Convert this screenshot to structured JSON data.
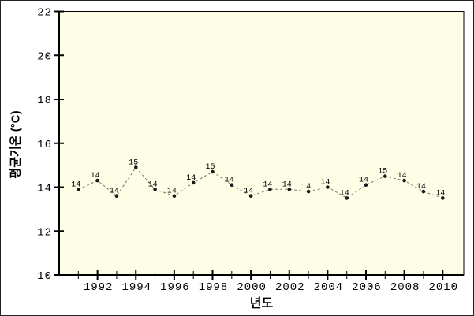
{
  "chart_data": {
    "type": "line",
    "title": "",
    "xlabel": "년도",
    "ylabel": "평균기온 (°C)",
    "x": [
      1991,
      1992,
      1993,
      1994,
      1995,
      1996,
      1997,
      1998,
      1999,
      2000,
      2001,
      2002,
      2003,
      2004,
      2005,
      2006,
      2007,
      2008,
      2009,
      2010
    ],
    "series": [
      {
        "name": "평균기온",
        "values": [
          13.9,
          14.3,
          13.6,
          14.9,
          13.9,
          13.6,
          14.2,
          14.7,
          14.1,
          13.6,
          13.9,
          13.9,
          13.8,
          14.0,
          13.5,
          14.1,
          14.5,
          14.3,
          13.8,
          13.5
        ],
        "point_labels": [
          "14",
          "14",
          "14",
          "15",
          "14",
          "14",
          "14",
          "15",
          "14",
          "14",
          "14",
          "14",
          "14",
          "14",
          "14",
          "14",
          "15",
          "14",
          "14",
          "14"
        ]
      }
    ],
    "xlim": [
      1990,
      2011.1
    ],
    "ylim": [
      10,
      22
    ],
    "y_ticks": [
      10,
      12,
      14,
      16,
      18,
      20,
      22
    ],
    "x_minor_tick_years": [
      1991,
      1993,
      1995,
      1997,
      1999,
      2001,
      2003,
      2005,
      2007,
      2009
    ],
    "x_major_tick_years": [
      1992,
      1994,
      1996,
      1998,
      2000,
      2002,
      2004,
      2006,
      2008,
      2010
    ],
    "grid": false,
    "legend_position": "none",
    "line_style": "dashed",
    "marker": "filled-circle",
    "colors": {
      "page_background": "#FFFFFF",
      "plot_background": "#FEFEE7",
      "axis": "#000000",
      "line": "#777777",
      "marker": "#1A1A1A",
      "text": "#000000"
    }
  }
}
